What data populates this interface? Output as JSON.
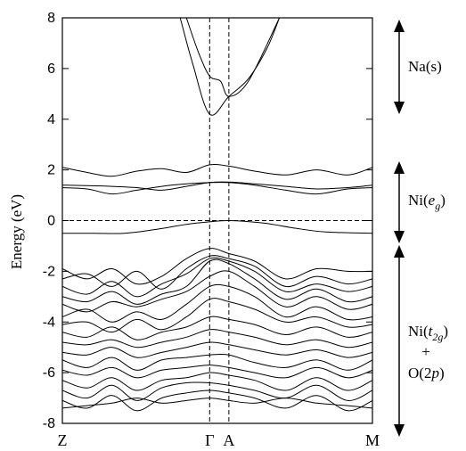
{
  "chart_data": {
    "type": "line",
    "title": "",
    "ylabel": "Energy (eV)",
    "xlabel": "",
    "ylim": [
      -8,
      8
    ],
    "yticks": [
      -8,
      -6,
      -4,
      -2,
      0,
      2,
      4,
      6,
      8
    ],
    "ytick_labels": [
      "-8",
      "-6",
      "-4",
      "-2",
      "0",
      "2",
      "4",
      "6",
      "8"
    ],
    "kpath": [
      {
        "label": "Z",
        "x": 0
      },
      {
        "label": "Γ",
        "x": 0.475
      },
      {
        "label": "A",
        "x": 0.537
      },
      {
        "label": "M",
        "x": 1
      }
    ],
    "fermi_level": 0,
    "grid": false,
    "band_groups": [
      {
        "label": "Na(s)",
        "range": [
          4.3,
          7.8
        ]
      },
      {
        "label": "Ni(e_g)",
        "label_main": "Ni(",
        "label_sub_main": "e",
        "label_sub": "g",
        "label_end": ")",
        "range": [
          -0.8,
          2.1
        ]
      },
      {
        "label": "Ni(t_2g) + O(2p)",
        "range": [
          -7.8,
          -0.9
        ]
      }
    ],
    "band_group_labels": {
      "na_s": "Na(s)",
      "ni_eg_prefix": "Ni(",
      "ni_eg_italic": "e",
      "ni_eg_sub": "g",
      "ni_eg_suffix": ")",
      "ni_t2g_prefix": "Ni(",
      "ni_t2g_italic": "t",
      "ni_t2g_sub": "2g",
      "ni_t2g_suffix": ")",
      "plus": "+",
      "o2p_prefix": "O(2",
      "o2p_italic": "p",
      "o2p_suffix": ")"
    },
    "series": [
      {
        "values": [
          [
            0.0,
            -0.5
          ],
          [
            0.1,
            -0.5
          ],
          [
            0.2,
            -0.5
          ],
          [
            0.3,
            -0.35
          ],
          [
            0.4,
            -0.15
          ],
          [
            0.475,
            -0.05
          ],
          [
            0.537,
            0.0
          ],
          [
            0.65,
            -0.1
          ],
          [
            0.75,
            -0.3
          ],
          [
            0.85,
            -0.45
          ],
          [
            1.0,
            -0.5
          ]
        ]
      },
      {
        "values": [
          [
            0.0,
            1.3
          ],
          [
            0.08,
            1.25
          ],
          [
            0.16,
            1.05
          ],
          [
            0.24,
            1.2
          ],
          [
            0.32,
            1.35
          ],
          [
            0.4,
            1.45
          ],
          [
            0.475,
            1.5
          ],
          [
            0.537,
            1.5
          ],
          [
            0.62,
            1.4
          ],
          [
            0.72,
            1.2
          ],
          [
            0.82,
            1.05
          ],
          [
            0.92,
            1.25
          ],
          [
            1.0,
            1.3
          ]
        ]
      },
      {
        "values": [
          [
            0.0,
            1.4
          ],
          [
            0.08,
            1.38
          ],
          [
            0.16,
            1.35
          ],
          [
            0.24,
            1.3
          ],
          [
            0.32,
            1.2
          ],
          [
            0.4,
            1.35
          ],
          [
            0.475,
            1.5
          ],
          [
            0.537,
            1.52
          ],
          [
            0.62,
            1.45
          ],
          [
            0.72,
            1.35
          ],
          [
            0.82,
            1.25
          ],
          [
            0.92,
            1.3
          ],
          [
            1.0,
            1.4
          ]
        ]
      },
      {
        "values": [
          [
            0.0,
            2.1
          ],
          [
            0.08,
            1.9
          ],
          [
            0.16,
            1.75
          ],
          [
            0.24,
            1.95
          ],
          [
            0.32,
            2.05
          ],
          [
            0.4,
            1.9
          ],
          [
            0.475,
            2.2
          ],
          [
            0.537,
            2.15
          ],
          [
            0.62,
            1.95
          ],
          [
            0.72,
            1.8
          ],
          [
            0.82,
            2.0
          ],
          [
            0.92,
            1.8
          ],
          [
            1.0,
            2.1
          ]
        ]
      },
      {
        "values": [
          [
            0.38,
            8.0
          ],
          [
            0.42,
            6.2
          ],
          [
            0.475,
            4.2
          ],
          [
            0.537,
            4.9
          ],
          [
            0.6,
            5.6
          ],
          [
            0.66,
            6.8
          ],
          [
            0.7,
            8.0
          ]
        ]
      },
      {
        "values": [
          [
            0.4,
            8.0
          ],
          [
            0.44,
            6.6
          ],
          [
            0.475,
            5.7
          ],
          [
            0.51,
            5.5
          ],
          [
            0.537,
            4.9
          ],
          [
            0.6,
            5.5
          ],
          [
            0.7,
            8.0
          ]
        ]
      },
      {
        "values": [
          [
            0.0,
            -1.9
          ],
          [
            0.08,
            -2.3
          ],
          [
            0.16,
            -1.9
          ],
          [
            0.24,
            -2.5
          ],
          [
            0.32,
            -2.2
          ],
          [
            0.4,
            -1.5
          ],
          [
            0.475,
            -1.1
          ],
          [
            0.537,
            -1.3
          ],
          [
            0.62,
            -1.6
          ],
          [
            0.72,
            -2.3
          ],
          [
            0.82,
            -1.9
          ],
          [
            0.92,
            -2.0
          ],
          [
            1.0,
            -2.0
          ]
        ]
      },
      {
        "values": [
          [
            0.0,
            -2.3
          ],
          [
            0.08,
            -2.1
          ],
          [
            0.16,
            -2.6
          ],
          [
            0.24,
            -2.0
          ],
          [
            0.32,
            -2.7
          ],
          [
            0.4,
            -1.9
          ],
          [
            0.475,
            -1.4
          ],
          [
            0.537,
            -1.5
          ],
          [
            0.62,
            -1.8
          ],
          [
            0.72,
            -2.6
          ],
          [
            0.82,
            -2.2
          ],
          [
            0.92,
            -2.5
          ],
          [
            1.0,
            -2.3
          ]
        ]
      },
      {
        "values": [
          [
            0.0,
            -2.6
          ],
          [
            0.08,
            -2.9
          ],
          [
            0.16,
            -2.4
          ],
          [
            0.24,
            -3.0
          ],
          [
            0.32,
            -2.5
          ],
          [
            0.4,
            -2.1
          ],
          [
            0.475,
            -1.5
          ],
          [
            0.537,
            -1.6
          ],
          [
            0.62,
            -2.0
          ],
          [
            0.72,
            -2.8
          ],
          [
            0.82,
            -2.5
          ],
          [
            0.92,
            -2.8
          ],
          [
            1.0,
            -2.6
          ]
        ]
      },
      {
        "values": [
          [
            0.0,
            -3.0
          ],
          [
            0.08,
            -3.2
          ],
          [
            0.16,
            -2.8
          ],
          [
            0.24,
            -3.3
          ],
          [
            0.32,
            -2.9
          ],
          [
            0.4,
            -2.6
          ],
          [
            0.475,
            -1.6
          ],
          [
            0.537,
            -1.7
          ],
          [
            0.62,
            -2.3
          ],
          [
            0.72,
            -3.1
          ],
          [
            0.82,
            -2.7
          ],
          [
            0.92,
            -3.2
          ],
          [
            1.0,
            -3.0
          ]
        ]
      },
      {
        "values": [
          [
            0.0,
            -3.3
          ],
          [
            0.08,
            -3.6
          ],
          [
            0.16,
            -3.2
          ],
          [
            0.24,
            -3.4
          ],
          [
            0.32,
            -3.1
          ],
          [
            0.4,
            -2.8
          ],
          [
            0.475,
            -2.2
          ],
          [
            0.537,
            -2.0
          ],
          [
            0.62,
            -2.6
          ],
          [
            0.72,
            -3.4
          ],
          [
            0.82,
            -3.0
          ],
          [
            0.92,
            -3.5
          ],
          [
            1.0,
            -3.3
          ]
        ]
      },
      {
        "values": [
          [
            0.0,
            -3.8
          ],
          [
            0.08,
            -3.5
          ],
          [
            0.16,
            -4.0
          ],
          [
            0.24,
            -3.6
          ],
          [
            0.32,
            -3.9
          ],
          [
            0.4,
            -3.3
          ],
          [
            0.475,
            -2.6
          ],
          [
            0.537,
            -2.6
          ],
          [
            0.62,
            -3.0
          ],
          [
            0.72,
            -3.8
          ],
          [
            0.82,
            -3.4
          ],
          [
            0.92,
            -3.9
          ],
          [
            1.0,
            -3.8
          ]
        ]
      },
      {
        "values": [
          [
            0.0,
            -4.1
          ],
          [
            0.08,
            -4.0
          ],
          [
            0.16,
            -4.4
          ],
          [
            0.24,
            -3.9
          ],
          [
            0.32,
            -4.3
          ],
          [
            0.4,
            -3.8
          ],
          [
            0.475,
            -3.1
          ],
          [
            0.537,
            -3.2
          ],
          [
            0.62,
            -3.5
          ],
          [
            0.72,
            -4.0
          ],
          [
            0.82,
            -3.8
          ],
          [
            0.92,
            -4.2
          ],
          [
            1.0,
            -4.1
          ]
        ]
      },
      {
        "values": [
          [
            0.0,
            -4.4
          ],
          [
            0.08,
            -4.6
          ],
          [
            0.16,
            -4.2
          ],
          [
            0.24,
            -4.7
          ],
          [
            0.32,
            -4.4
          ],
          [
            0.4,
            -4.2
          ],
          [
            0.475,
            -3.8
          ],
          [
            0.537,
            -3.9
          ],
          [
            0.62,
            -4.1
          ],
          [
            0.72,
            -4.5
          ],
          [
            0.82,
            -4.2
          ],
          [
            0.92,
            -4.6
          ],
          [
            1.0,
            -4.4
          ]
        ]
      },
      {
        "values": [
          [
            0.0,
            -4.8
          ],
          [
            0.08,
            -4.9
          ],
          [
            0.16,
            -4.7
          ],
          [
            0.24,
            -5.0
          ],
          [
            0.32,
            -4.8
          ],
          [
            0.4,
            -4.6
          ],
          [
            0.475,
            -4.3
          ],
          [
            0.537,
            -4.4
          ],
          [
            0.62,
            -4.6
          ],
          [
            0.72,
            -4.9
          ],
          [
            0.82,
            -4.7
          ],
          [
            0.92,
            -5.0
          ],
          [
            1.0,
            -4.8
          ]
        ]
      },
      {
        "values": [
          [
            0.0,
            -5.2
          ],
          [
            0.08,
            -5.3
          ],
          [
            0.16,
            -5.0
          ],
          [
            0.24,
            -5.4
          ],
          [
            0.32,
            -5.2
          ],
          [
            0.4,
            -5.0
          ],
          [
            0.475,
            -4.8
          ],
          [
            0.537,
            -4.9
          ],
          [
            0.62,
            -5.1
          ],
          [
            0.72,
            -5.3
          ],
          [
            0.82,
            -5.1
          ],
          [
            0.92,
            -5.4
          ],
          [
            1.0,
            -5.2
          ]
        ]
      },
      {
        "values": [
          [
            0.0,
            -5.5
          ],
          [
            0.08,
            -5.8
          ],
          [
            0.16,
            -5.4
          ],
          [
            0.24,
            -5.9
          ],
          [
            0.32,
            -5.5
          ],
          [
            0.4,
            -5.4
          ],
          [
            0.475,
            -5.3
          ],
          [
            0.537,
            -5.3
          ],
          [
            0.62,
            -5.6
          ],
          [
            0.72,
            -5.8
          ],
          [
            0.82,
            -5.5
          ],
          [
            0.92,
            -5.9
          ],
          [
            1.0,
            -5.5
          ]
        ]
      },
      {
        "values": [
          [
            0.0,
            -5.9
          ],
          [
            0.08,
            -6.1
          ],
          [
            0.16,
            -5.8
          ],
          [
            0.24,
            -6.2
          ],
          [
            0.32,
            -5.9
          ],
          [
            0.4,
            -5.8
          ],
          [
            0.475,
            -5.7
          ],
          [
            0.537,
            -5.8
          ],
          [
            0.62,
            -6.0
          ],
          [
            0.72,
            -6.2
          ],
          [
            0.82,
            -5.8
          ],
          [
            0.92,
            -6.2
          ],
          [
            1.0,
            -5.9
          ]
        ]
      },
      {
        "values": [
          [
            0.0,
            -6.3
          ],
          [
            0.08,
            -6.6
          ],
          [
            0.16,
            -6.2
          ],
          [
            0.24,
            -6.7
          ],
          [
            0.32,
            -6.3
          ],
          [
            0.4,
            -6.2
          ],
          [
            0.475,
            -6.0
          ],
          [
            0.537,
            -6.1
          ],
          [
            0.62,
            -6.3
          ],
          [
            0.72,
            -6.7
          ],
          [
            0.82,
            -6.2
          ],
          [
            0.92,
            -6.7
          ],
          [
            1.0,
            -6.3
          ]
        ]
      },
      {
        "values": [
          [
            0.0,
            -6.7
          ],
          [
            0.08,
            -7.0
          ],
          [
            0.16,
            -6.5
          ],
          [
            0.24,
            -7.1
          ],
          [
            0.32,
            -6.6
          ],
          [
            0.4,
            -6.4
          ],
          [
            0.475,
            -6.4
          ],
          [
            0.537,
            -6.5
          ],
          [
            0.62,
            -6.7
          ],
          [
            0.72,
            -7.0
          ],
          [
            0.82,
            -6.5
          ],
          [
            0.92,
            -7.1
          ],
          [
            1.0,
            -6.7
          ]
        ]
      },
      {
        "values": [
          [
            0.0,
            -7.1
          ],
          [
            0.08,
            -7.4
          ],
          [
            0.16,
            -6.9
          ],
          [
            0.24,
            -7.5
          ],
          [
            0.32,
            -7.0
          ],
          [
            0.4,
            -6.8
          ],
          [
            0.475,
            -6.7
          ],
          [
            0.537,
            -6.8
          ],
          [
            0.62,
            -7.0
          ],
          [
            0.72,
            -7.4
          ],
          [
            0.82,
            -6.9
          ],
          [
            0.92,
            -7.5
          ],
          [
            1.0,
            -7.1
          ]
        ]
      },
      {
        "values": [
          [
            0.0,
            -7.4
          ],
          [
            0.08,
            -7.3
          ],
          [
            0.16,
            -7.2
          ],
          [
            0.24,
            -7.0
          ],
          [
            0.32,
            -7.2
          ],
          [
            0.4,
            -7.1
          ],
          [
            0.475,
            -7.0
          ],
          [
            0.537,
            -7.1
          ],
          [
            0.62,
            -7.2
          ],
          [
            0.72,
            -7.0
          ],
          [
            0.82,
            -7.2
          ],
          [
            0.92,
            -7.3
          ],
          [
            1.0,
            -7.4
          ]
        ]
      }
    ]
  }
}
